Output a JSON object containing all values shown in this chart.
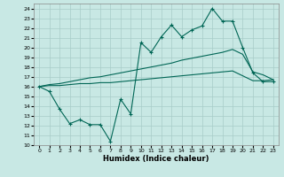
{
  "xlabel": "Humidex (Indice chaleur)",
  "bg_color": "#c8e8e4",
  "line_color": "#006655",
  "grid_color": "#a8ccc8",
  "xlim": [
    -0.5,
    23.5
  ],
  "ylim": [
    10,
    24.5
  ],
  "yticks": [
    10,
    11,
    12,
    13,
    14,
    15,
    16,
    17,
    18,
    19,
    20,
    21,
    22,
    23,
    24
  ],
  "xticks": [
    0,
    1,
    2,
    3,
    4,
    5,
    6,
    7,
    8,
    9,
    10,
    11,
    12,
    13,
    14,
    15,
    16,
    17,
    18,
    19,
    20,
    21,
    22,
    23
  ],
  "line_jagged_x": [
    0,
    1,
    2,
    3,
    4,
    5,
    6,
    7,
    8,
    9,
    10,
    11,
    12,
    13,
    14,
    15,
    16,
    17,
    18,
    19,
    20,
    21,
    22,
    23
  ],
  "line_jagged_y": [
    16.0,
    15.5,
    13.7,
    12.2,
    12.6,
    12.1,
    12.1,
    10.4,
    14.7,
    13.2,
    20.5,
    19.5,
    21.1,
    22.3,
    21.1,
    21.8,
    22.2,
    24.0,
    22.7,
    22.7,
    20.0,
    17.4,
    16.5,
    16.5
  ],
  "line_upper_x": [
    0,
    1,
    2,
    3,
    4,
    5,
    6,
    7,
    8,
    9,
    10,
    11,
    12,
    13,
    14,
    15,
    16,
    17,
    18,
    19,
    20,
    21,
    22,
    23
  ],
  "line_upper_y": [
    16.0,
    16.2,
    16.3,
    16.5,
    16.7,
    16.9,
    17.0,
    17.2,
    17.4,
    17.6,
    17.8,
    18.0,
    18.2,
    18.4,
    18.7,
    18.9,
    19.1,
    19.3,
    19.5,
    19.8,
    19.3,
    17.5,
    17.2,
    16.7
  ],
  "line_lower_x": [
    0,
    1,
    2,
    3,
    4,
    5,
    6,
    7,
    8,
    9,
    10,
    11,
    12,
    13,
    14,
    15,
    16,
    17,
    18,
    19,
    20,
    21,
    22,
    23
  ],
  "line_lower_y": [
    16.0,
    16.1,
    16.1,
    16.2,
    16.3,
    16.3,
    16.4,
    16.4,
    16.5,
    16.6,
    16.7,
    16.8,
    16.9,
    17.0,
    17.1,
    17.2,
    17.3,
    17.4,
    17.5,
    17.6,
    17.1,
    16.6,
    16.6,
    16.7
  ]
}
